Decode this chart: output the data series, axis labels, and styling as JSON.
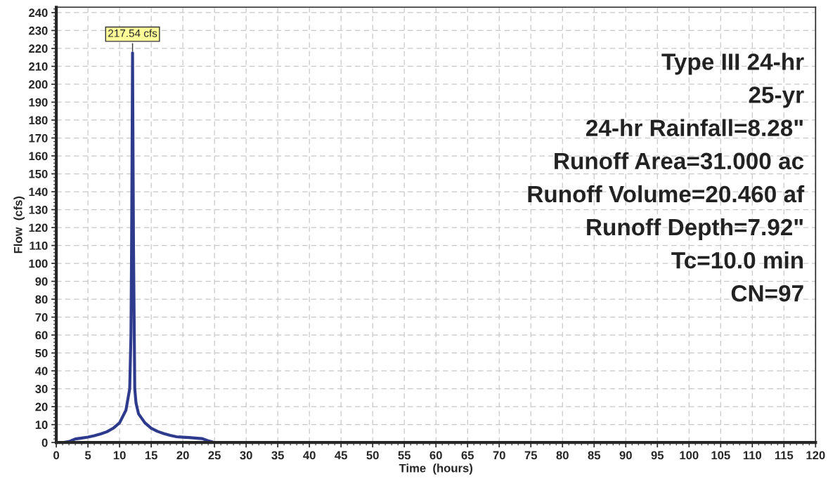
{
  "chart_data": {
    "type": "line",
    "xlabel": "Time  (hours)",
    "ylabel": "Flow  (cfs)",
    "x": [
      0,
      1,
      2,
      3,
      4,
      5,
      6,
      7,
      8,
      9,
      10,
      11,
      11.6,
      11.8,
      11.9,
      12.05,
      12.2,
      12.4,
      12.6,
      13,
      14,
      15,
      16,
      17,
      18,
      19,
      20,
      21,
      22,
      23,
      24,
      25,
      120
    ],
    "series": [
      {
        "color": "#2e3a8c",
        "values": [
          0,
          0,
          0.5,
          2,
          2.5,
          3,
          3.8,
          4.8,
          6,
          8,
          11,
          18,
          30,
          60,
          110,
          217.54,
          110,
          30,
          22,
          16,
          11,
          8,
          6.2,
          5,
          4,
          3.2,
          3,
          2.8,
          2.5,
          2.2,
          1,
          0,
          0
        ]
      }
    ],
    "xlim": [
      0,
      120
    ],
    "ylim": [
      0,
      243
    ],
    "xticks": [
      0,
      5,
      10,
      15,
      20,
      25,
      30,
      35,
      40,
      45,
      50,
      55,
      60,
      65,
      70,
      75,
      80,
      85,
      90,
      95,
      100,
      105,
      110,
      115,
      120
    ],
    "yticks": [
      0,
      10,
      20,
      30,
      40,
      50,
      60,
      70,
      80,
      90,
      100,
      110,
      120,
      130,
      140,
      150,
      160,
      170,
      180,
      190,
      200,
      210,
      220,
      230,
      240
    ],
    "grid": true,
    "line_style": "solid",
    "marker": "none",
    "annotations": [
      {
        "text": "217.54 cfs",
        "x": 12.05,
        "y": 217.54
      },
      "Type III 24-hr",
      "25-yr",
      "24-hr Rainfall=8.28\"",
      "Runoff Area=31.000 ac",
      "Runoff Volume=20.460 af",
      "Runoff Depth=7.92\"",
      "Tc=10.0 min",
      "CN=97"
    ]
  }
}
